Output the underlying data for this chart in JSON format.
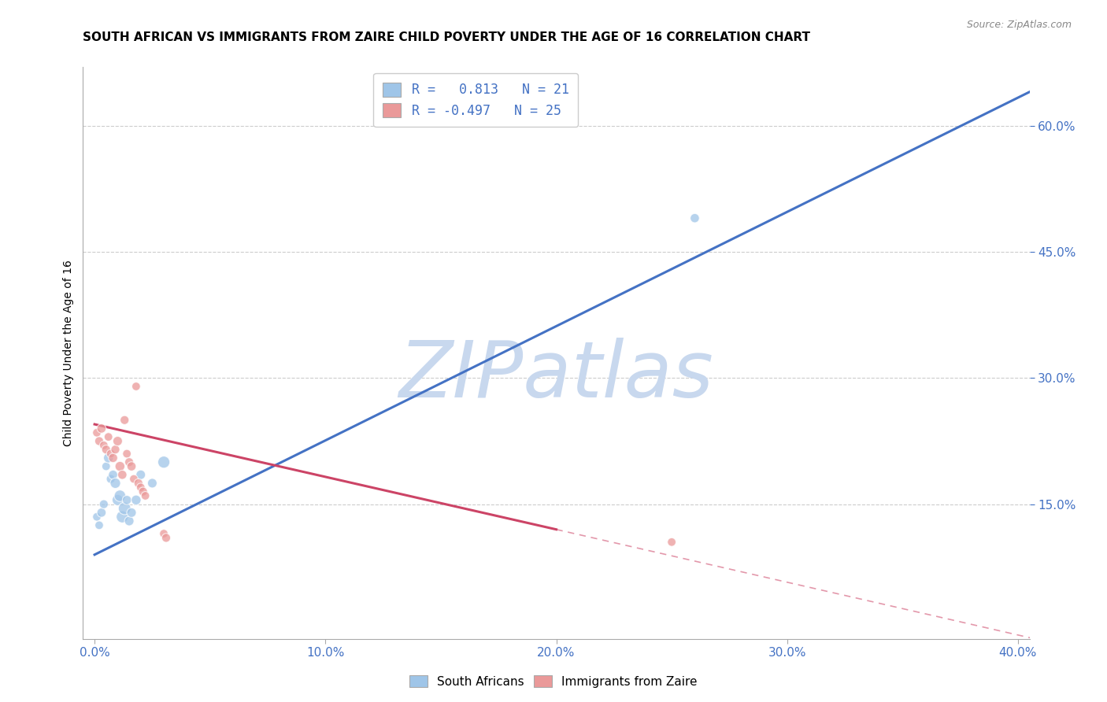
{
  "title": "SOUTH AFRICAN VS IMMIGRANTS FROM ZAIRE CHILD POVERTY UNDER THE AGE OF 16 CORRELATION CHART",
  "source": "Source: ZipAtlas.com",
  "xlabel": "",
  "ylabel": "Child Poverty Under the Age of 16",
  "xlim": [
    -0.005,
    0.405
  ],
  "ylim": [
    -0.01,
    0.67
  ],
  "xticks": [
    0.0,
    0.1,
    0.2,
    0.3,
    0.4
  ],
  "xtick_labels": [
    "0.0%",
    "10.0%",
    "20.0%",
    "30.0%",
    "40.0%"
  ],
  "yticks_right": [
    0.15,
    0.3,
    0.45,
    0.6
  ],
  "ytick_right_labels": [
    "15.0%",
    "30.0%",
    "45.0%",
    "60.0%"
  ],
  "right_axis_color": "#4472c4",
  "watermark": "ZIPatlas",
  "watermark_color": "#c8d8ee",
  "legend_title_blue": "R =   0.813   N = 21",
  "legend_title_pink": "R = -0.497   N = 25",
  "legend_label_blue": "South Africans",
  "legend_label_pink": "Immigrants from Zaire",
  "blue_color": "#9fc5e8",
  "pink_color": "#ea9999",
  "blue_line_color": "#4472c4",
  "pink_line_color": "#cc4466",
  "blue_scatter": {
    "x": [
      0.001,
      0.002,
      0.003,
      0.004,
      0.005,
      0.006,
      0.007,
      0.008,
      0.009,
      0.01,
      0.011,
      0.012,
      0.013,
      0.014,
      0.015,
      0.016,
      0.018,
      0.02,
      0.025,
      0.03,
      0.26
    ],
    "y": [
      0.135,
      0.125,
      0.14,
      0.15,
      0.195,
      0.205,
      0.18,
      0.185,
      0.175,
      0.155,
      0.16,
      0.135,
      0.145,
      0.155,
      0.13,
      0.14,
      0.155,
      0.185,
      0.175,
      0.2,
      0.49
    ],
    "sizes": [
      60,
      60,
      70,
      65,
      60,
      80,
      65,
      70,
      90,
      100,
      110,
      120,
      130,
      70,
      75,
      75,
      80,
      75,
      75,
      120,
      70
    ]
  },
  "pink_scatter": {
    "x": [
      0.001,
      0.002,
      0.003,
      0.004,
      0.005,
      0.006,
      0.007,
      0.008,
      0.009,
      0.01,
      0.011,
      0.012,
      0.013,
      0.014,
      0.015,
      0.016,
      0.017,
      0.018,
      0.019,
      0.02,
      0.021,
      0.022,
      0.03,
      0.031,
      0.25
    ],
    "y": [
      0.235,
      0.225,
      0.24,
      0.22,
      0.215,
      0.23,
      0.21,
      0.205,
      0.215,
      0.225,
      0.195,
      0.185,
      0.25,
      0.21,
      0.2,
      0.195,
      0.18,
      0.29,
      0.175,
      0.17,
      0.165,
      0.16,
      0.115,
      0.11,
      0.105
    ],
    "sizes": [
      60,
      65,
      70,
      60,
      65,
      60,
      60,
      70,
      65,
      75,
      80,
      70,
      65,
      60,
      65,
      70,
      60,
      60,
      65,
      60,
      65,
      60,
      60,
      65,
      60
    ]
  },
  "blue_line": {
    "x": [
      0.0,
      0.405
    ],
    "y": [
      0.09,
      0.64
    ]
  },
  "pink_line_solid": {
    "x": [
      0.0,
      0.2
    ],
    "y": [
      0.245,
      0.12
    ]
  },
  "pink_line_dashed": {
    "x": [
      0.2,
      0.42
    ],
    "y": [
      0.12,
      -0.018
    ]
  },
  "grid_color": "#cccccc",
  "background_color": "#ffffff",
  "title_fontsize": 11,
  "axis_label_fontsize": 10,
  "tick_fontsize": 11
}
